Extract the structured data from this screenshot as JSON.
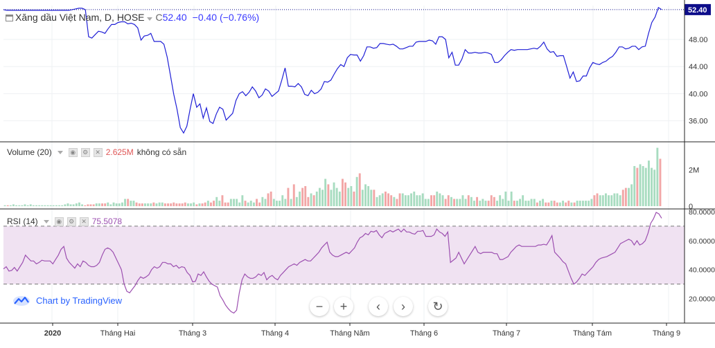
{
  "header": {
    "symbol_title": "Xăng dầu Việt Nam, D, HOSE",
    "close_prefix": "C",
    "close_value": "52.40",
    "change": "−0.40 (−0.76%)"
  },
  "volume_pane": {
    "label": "Volume (20)",
    "value": "2.625M",
    "note": "không có sẵn",
    "axis_ticks": [
      "2M",
      "0"
    ]
  },
  "rsi_pane": {
    "label": "RSI (14)",
    "value": "75.5078",
    "axis_ticks": [
      "80.0000",
      "60.0000",
      "40.0000",
      "20.0000"
    ]
  },
  "attribution": "Chart by TradingView",
  "colors": {
    "price_line": "#1f1fd6",
    "volume_up": "#a8dcc0",
    "volume_down": "#f2a6a6",
    "rsi_line": "#9c4fb0",
    "rsi_band": "#f0e2f2",
    "last_price_badge": "#0d0d8a"
  },
  "icons": {
    "nav": [
      "minus-icon",
      "plus-icon",
      "chevron-left-icon",
      "chevron-right-icon",
      "reset-icon"
    ],
    "attribution": "tradingview-logo-icon"
  },
  "chart_data": {
    "type": "line",
    "price_axis_ticks": [
      "48.00",
      "44.00",
      "40.00",
      "36.00"
    ],
    "last_price_label": "52.40",
    "x_axis_labels": [
      "2020",
      "Tháng Hai",
      "Tháng 3",
      "Tháng 4",
      "Tháng Năm",
      "Tháng 6",
      "Tháng 7",
      "Tháng Tám",
      "Tháng 9"
    ],
    "series": [
      {
        "values": [
          52.4,
          52.3,
          52.3,
          52.3,
          52.3,
          52.3,
          52.3,
          52.3,
          52.3,
          52.3,
          52.3,
          52.3,
          52.3,
          52.3,
          52.3,
          52.3,
          52.3,
          52.3,
          52.3,
          52.3,
          52.3,
          52.4,
          52.5,
          52.6,
          52.6,
          52.4,
          48.4,
          48.2,
          48.7,
          49.2,
          49.1,
          48.9,
          49.6,
          50.2,
          50.2,
          50.5,
          50.6,
          50.6,
          50.3,
          50.4,
          50.2,
          49.7,
          47.9,
          48.5,
          48.6,
          48.9,
          47.7,
          47.7,
          47.7,
          47.3,
          45.4,
          42.7,
          39.9,
          37.7,
          35.0,
          34.2,
          35.2,
          37.7,
          40.0,
          38.0,
          38.5,
          36.4,
          37.9,
          35.9,
          35.6,
          37.0,
          38.0,
          37.7,
          36.1,
          36.6,
          37.1,
          39.0,
          40.0,
          40.3,
          39.7,
          40.2,
          41.0,
          40.4,
          39.4,
          39.8,
          40.7,
          40.4,
          39.6,
          40.0,
          40.4,
          42.0,
          43.8,
          41.1,
          41.1,
          41.0,
          41.5,
          41.0,
          39.9,
          39.7,
          40.5,
          40.0,
          40.2,
          40.7,
          41.8,
          41.7,
          42.0,
          42.9,
          43.7,
          44.3,
          44.0,
          45.3,
          45.8,
          45.7,
          45.7,
          44.8,
          45.6,
          46.9,
          46.9,
          46.7,
          46.8,
          47.4,
          47.4,
          47.3,
          47.2,
          47.3,
          47.0,
          46.6,
          46.6,
          46.8,
          47.0,
          47.0,
          47.6,
          47.7,
          47.7,
          47.7,
          47.9,
          47.8,
          47.3,
          48.4,
          48.4,
          48.0,
          45.3,
          46.1,
          44.2,
          44.2,
          45.1,
          46.5,
          46.0,
          46.0,
          46.1,
          46.0,
          46.0,
          46.1,
          46.0,
          45.8,
          44.6,
          44.6,
          45.0,
          45.6,
          46.1,
          46.5,
          46.4,
          46.5,
          46.5,
          46.5,
          46.5,
          46.6,
          46.7,
          46.6,
          47.0,
          47.6,
          46.6,
          46.1,
          46.2,
          45.5,
          45.6,
          45.6,
          44.0,
          42.3,
          43.2,
          41.8,
          41.9,
          42.6,
          42.6,
          43.8,
          44.6,
          44.4,
          44.3,
          44.6,
          44.8,
          45.2,
          45.5,
          46.1,
          46.9,
          46.9,
          46.6,
          46.7,
          47.0,
          47.0,
          46.5,
          46.9,
          47.0,
          48.9,
          50.5,
          51.3,
          52.7,
          52.4
        ]
      }
    ],
    "volume_values_millions": [
      0.05,
      0.05,
      0.05,
      0.1,
      0.05,
      0.05,
      0.05,
      0.1,
      0.05,
      0.1,
      0.05,
      0.05,
      0.05,
      0.05,
      0.05,
      0.05,
      0.05,
      0.05,
      0.05,
      0.05,
      0.05,
      0.1,
      0.15,
      0.1,
      0.1,
      0.15,
      0.2,
      0.1,
      0.05,
      0.1,
      0.1,
      0.1,
      0.15,
      0.15,
      0.15,
      0.15,
      0.2,
      0.1,
      0.2,
      0.15,
      0.15,
      0.2,
      0.4,
      0.4,
      0.3,
      0.3,
      0.2,
      0.15,
      0.15,
      0.15,
      0.15,
      0.15,
      0.2,
      0.15,
      0.2,
      0.2,
      0.15,
      0.15,
      0.15,
      0.2,
      0.15,
      0.15,
      0.15,
      0.2,
      0.15,
      0.15,
      0.2,
      0.1,
      0.15,
      0.15,
      0.2,
      0.3,
      0.2,
      0.3,
      0.5,
      0.3,
      0.6,
      0.2,
      0.2,
      0.4,
      0.4,
      0.4,
      0.2,
      0.6,
      0.3,
      0.2,
      0.3,
      0.2,
      0.4,
      0.2,
      0.5,
      0.4,
      0.7,
      0.8,
      0.4,
      0.3,
      0.3,
      0.6,
      0.4,
      1.0,
      0.4,
      1.2,
      0.5,
      0.8,
      1.0,
      1.1,
      0.5,
      0.7,
      0.6,
      0.8,
      1.0,
      0.9,
      1.5,
      1.2,
      0.9,
      1.3,
      1.0,
      0.8,
      1.5,
      1.3,
      1.0,
      1.1,
      0.8,
      1.6,
      1.8,
      0.9,
      1.2,
      1.1,
      0.9,
      0.9,
      0.5,
      0.6,
      0.7,
      0.8,
      0.7,
      0.6,
      0.5,
      0.4,
      0.7,
      0.7,
      0.6,
      0.6,
      0.7,
      0.8,
      0.6,
      0.6,
      0.7,
      0.4,
      0.4,
      0.6,
      0.6,
      0.8,
      0.7,
      0.6,
      0.4,
      0.6,
      0.5,
      0.4,
      0.4,
      0.4,
      0.6,
      0.4,
      0.6,
      0.5,
      0.3,
      0.5,
      0.3,
      0.4,
      0.3,
      0.3,
      0.6,
      0.5,
      0.3,
      0.6,
      0.4,
      0.8,
      0.3,
      0.8,
      0.3,
      0.3,
      0.4,
      0.6,
      0.3,
      0.3,
      0.4,
      0.4,
      0.2,
      0.3,
      0.4,
      0.2,
      0.2,
      0.3,
      0.3,
      0.2,
      0.2,
      0.3,
      0.2,
      0.3,
      0.2,
      0.2,
      0.3,
      0.3,
      0.3,
      0.3,
      0.3,
      0.4,
      0.6,
      0.7,
      0.6,
      0.6,
      0.7,
      0.6,
      0.6,
      0.7,
      0.7,
      0.6,
      0.9,
      1.0,
      1.0,
      1.2,
      2.2,
      2.1,
      2.3,
      2.2,
      2.1,
      2.5,
      2.1,
      2.0,
      3.2,
      2.6
    ],
    "rsi_values": [
      40.5,
      42.0,
      39.0,
      39.5,
      41.5,
      39.0,
      42.0,
      45.0,
      50.0,
      48.0,
      46.0,
      46.0,
      44.0,
      45.0,
      46.5,
      46.0,
      46.0,
      46.0,
      44.0,
      47.0,
      50.0,
      54.0,
      56.0,
      48.0,
      45.0,
      43.0,
      41.0,
      44.0,
      42.0,
      46.0,
      45.0,
      43.0,
      42.0,
      42.0,
      43.0,
      45.0,
      50.0,
      54.0,
      55.0,
      54.0,
      52.0,
      48.0,
      44.0,
      40.0,
      30.0,
      25.0,
      24.0,
      26.5,
      29.0,
      32.5,
      35.0,
      34.0,
      35.0,
      36.5,
      40.0,
      42.0,
      41.0,
      42.0,
      45.0,
      45.0,
      44.0,
      44.0,
      42.0,
      43.0,
      41.0,
      42.0,
      41.5,
      38.0,
      36.0,
      31.5,
      32.0,
      37.0,
      36.0,
      38.5,
      35.0,
      32.0,
      30.0,
      29.0,
      28.0,
      22.0,
      19.0,
      15.5,
      13.0,
      11.0,
      10.0,
      12.0,
      24.0,
      33.0,
      37.0,
      35.0,
      34.0,
      34.0,
      35.0,
      37.0,
      36.0,
      38.0,
      33.0,
      35.0,
      36.0,
      34.0,
      33.0,
      36.0,
      38.0,
      40.0,
      42.0,
      43.0,
      44.0,
      43.0,
      45.0,
      46.0,
      47.0,
      46.0,
      46.0,
      48.0,
      50.0,
      52.0,
      55.0,
      57.0,
      59.0,
      52.0,
      50.0,
      49.0,
      49.0,
      50.0,
      51.0,
      52.0,
      51.0,
      53.0,
      55.0,
      59.0,
      62.0,
      63.0,
      65.0,
      64.0,
      66.5,
      66.0,
      67.0,
      64.0,
      62.0,
      65.0,
      66.0,
      67.0,
      66.0,
      67.0,
      68.0,
      66.0,
      68.0,
      66.0,
      66.0,
      65.0,
      64.5,
      66.5,
      66.5,
      67.0,
      63.0,
      63.0,
      63.0,
      64.0,
      68.0,
      66.0,
      65.0,
      63.0,
      66.0,
      45.0,
      46.5,
      48.0,
      52.0,
      48.0,
      44.0,
      47.0,
      50.0,
      53.0,
      56.0,
      52.0,
      51.0,
      52.0,
      52.0,
      52.0,
      52.0,
      51.0,
      51.0,
      47.0,
      47.0,
      48.0,
      49.0,
      52.0,
      54.0,
      56.0,
      57.0,
      56.0,
      56.0,
      56.0,
      56.0,
      56.0,
      56.0,
      57.0,
      57.0,
      57.5,
      57.0,
      60.0,
      63.5,
      52.0,
      50.0,
      48.0,
      45.5,
      44.0,
      39.0,
      34.0,
      30.0,
      31.5,
      34.0,
      37.0,
      36.0,
      38.0,
      40.0,
      42.0,
      45.0,
      47.0,
      48.0,
      48.5,
      49.0,
      50.0,
      51.0,
      52.0,
      55.0,
      58.0,
      59.0,
      60.0,
      61.0,
      60.0,
      57.0,
      60.0,
      57.0,
      58.0,
      60.0,
      65.0,
      72.0,
      75.0,
      79.5,
      78.5,
      75.5
    ],
    "price_range": [
      33.0,
      53.0
    ],
    "rsi_range": [
      5,
      80
    ],
    "rsi_band": [
      30,
      70
    ],
    "grid": true
  }
}
